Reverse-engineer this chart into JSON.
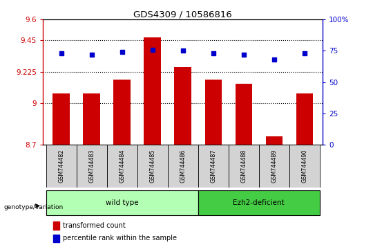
{
  "title": "GDS4309 / 10586816",
  "samples": [
    "GSM744482",
    "GSM744483",
    "GSM744484",
    "GSM744485",
    "GSM744486",
    "GSM744487",
    "GSM744488",
    "GSM744489",
    "GSM744490"
  ],
  "transformed_counts": [
    9.07,
    9.07,
    9.17,
    9.47,
    9.26,
    9.17,
    9.14,
    8.76,
    9.07
  ],
  "percentile_ranks": [
    73,
    72,
    74,
    76,
    75,
    73,
    72,
    68,
    73
  ],
  "ylim_left": [
    8.7,
    9.6
  ],
  "ylim_right": [
    0,
    100
  ],
  "yticks_left": [
    8.7,
    9.0,
    9.225,
    9.45,
    9.6
  ],
  "ytick_labels_left": [
    "8.7",
    "9",
    "9.225",
    "9.45",
    "9.6"
  ],
  "yticks_right": [
    0,
    25,
    50,
    75,
    100
  ],
  "ytick_labels_right": [
    "0",
    "25",
    "50",
    "75",
    "100%"
  ],
  "grid_lines": [
    9.0,
    9.225,
    9.45
  ],
  "bar_color": "#cc0000",
  "dot_color": "#0000cc",
  "n_wild": 5,
  "n_ezh2": 4,
  "wild_type_label": "wild type",
  "ezh2_label": "Ezh2-deficient",
  "legend_label_red": "transformed count",
  "legend_label_blue": "percentile rank within the sample",
  "genotype_label": "genotype/variation",
  "left_axis_color": "#cc0000",
  "right_axis_color": "#0000cc",
  "wt_box_color": "#b3ffb3",
  "ezh2_box_color": "#44cc44"
}
